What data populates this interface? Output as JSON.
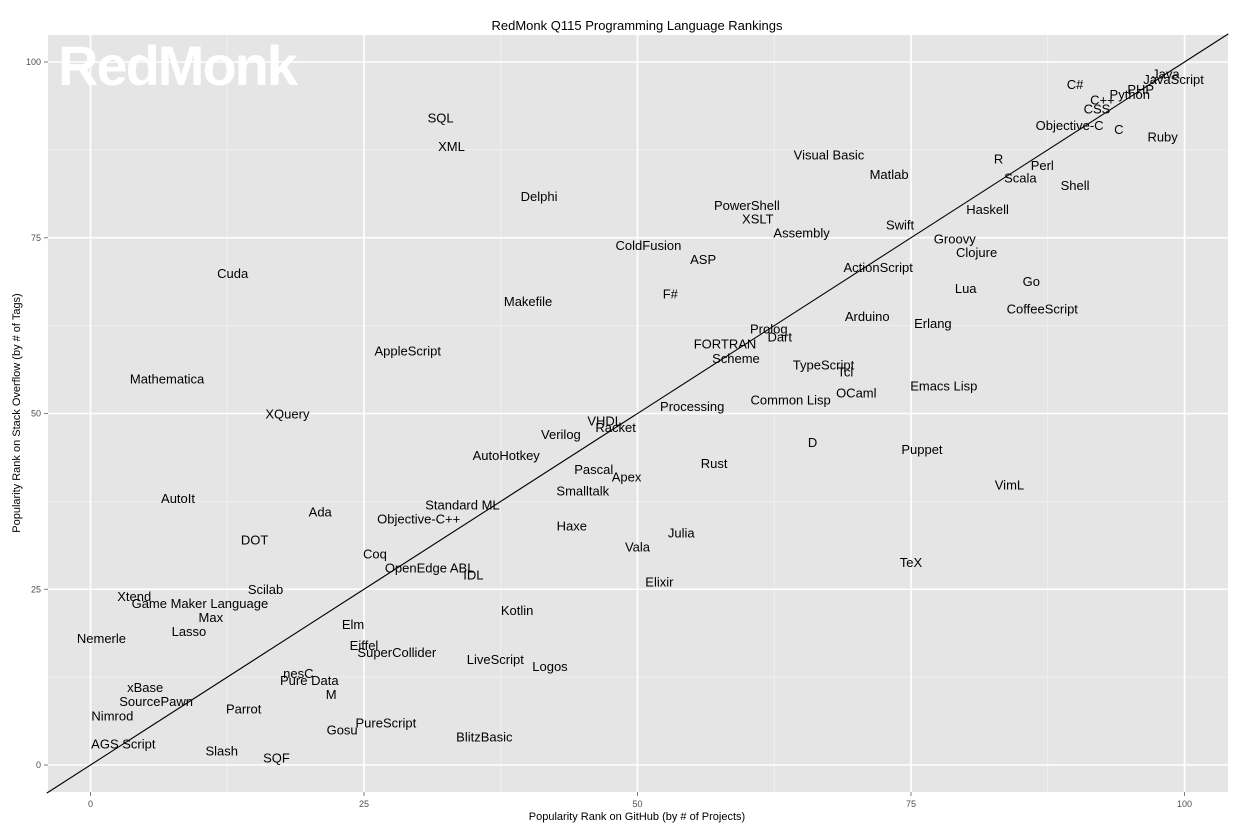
{
  "chart_data": {
    "type": "scatter",
    "title": "RedMonk Q115 Programming Language Rankings",
    "xlabel": "Popularity Rank on GitHub (by # of Projects)",
    "ylabel": "Popularity Rank on Stack Overflow (by # of Tags)",
    "xlim": [
      -4,
      104
    ],
    "ylim": [
      -4,
      104
    ],
    "xticks": [
      0,
      25,
      50,
      75,
      100
    ],
    "yticks": [
      0,
      25,
      50,
      75,
      100
    ],
    "grid": true,
    "legend": "none",
    "reference_line": "y = x",
    "watermark": "RedMonk",
    "colors": {
      "panel_background": "#e5e5e5",
      "grid_major": "#ffffff",
      "grid_minor": "#f2f2f2",
      "text": "#000000",
      "reference_line": "#000000",
      "watermark": "#ffffff"
    },
    "points": [
      {
        "label": "Java",
        "x": 98.3,
        "y": 98.3
      },
      {
        "label": "JavaScript",
        "x": 99.0,
        "y": 97.5
      },
      {
        "label": "C#",
        "x": 90.0,
        "y": 96.8
      },
      {
        "label": "PHP",
        "x": 96.0,
        "y": 96.1
      },
      {
        "label": "Python",
        "x": 95.0,
        "y": 95.4
      },
      {
        "label": "C++",
        "x": 92.5,
        "y": 94.6
      },
      {
        "label": "CSS",
        "x": 92.0,
        "y": 93.3
      },
      {
        "label": "Objective-C",
        "x": 89.5,
        "y": 91.0
      },
      {
        "label": "C",
        "x": 94.0,
        "y": 90.4
      },
      {
        "label": "Ruby",
        "x": 98.0,
        "y": 89.3
      },
      {
        "label": "R",
        "x": 83.0,
        "y": 86.2
      },
      {
        "label": "Perl",
        "x": 87.0,
        "y": 85.3
      },
      {
        "label": "Scala",
        "x": 85.0,
        "y": 83.5
      },
      {
        "label": "Shell",
        "x": 90.0,
        "y": 82.4
      },
      {
        "label": "Visual Basic",
        "x": 67.5,
        "y": 86.8
      },
      {
        "label": "Matlab",
        "x": 73.0,
        "y": 84.0
      },
      {
        "label": "Haskell",
        "x": 82.0,
        "y": 79.0
      },
      {
        "label": "Swift",
        "x": 74.0,
        "y": 76.8
      },
      {
        "label": "Groovy",
        "x": 79.0,
        "y": 74.8
      },
      {
        "label": "Clojure",
        "x": 81.0,
        "y": 72.9
      },
      {
        "label": "ActionScript",
        "x": 72.0,
        "y": 70.8
      },
      {
        "label": "Go",
        "x": 86.0,
        "y": 68.8
      },
      {
        "label": "Lua",
        "x": 80.0,
        "y": 67.8
      },
      {
        "label": "CoffeeScript",
        "x": 87.0,
        "y": 64.9
      },
      {
        "label": "Arduino",
        "x": 71.0,
        "y": 63.8
      },
      {
        "label": "Erlang",
        "x": 77.0,
        "y": 62.8
      },
      {
        "label": "PowerShell",
        "x": 60.0,
        "y": 79.6
      },
      {
        "label": "XSLT",
        "x": 61.0,
        "y": 77.7
      },
      {
        "label": "Assembly",
        "x": 65.0,
        "y": 75.7
      },
      {
        "label": "ColdFusion",
        "x": 51.0,
        "y": 73.9
      },
      {
        "label": "ASP",
        "x": 56.0,
        "y": 71.9
      },
      {
        "label": "F#",
        "x": 53.0,
        "y": 67.0
      },
      {
        "label": "Prolog",
        "x": 62.0,
        "y": 62.0
      },
      {
        "label": "Dart",
        "x": 63.0,
        "y": 60.9
      },
      {
        "label": "FORTRAN",
        "x": 58.0,
        "y": 59.9
      },
      {
        "label": "Scheme",
        "x": 59.0,
        "y": 57.8
      },
      {
        "label": "TypeScript",
        "x": 67.0,
        "y": 56.9
      },
      {
        "label": "Tcl",
        "x": 69.0,
        "y": 55.9
      },
      {
        "label": "Emacs Lisp",
        "x": 78.0,
        "y": 53.9
      },
      {
        "label": "OCaml",
        "x": 70.0,
        "y": 52.9
      },
      {
        "label": "Common Lisp",
        "x": 64.0,
        "y": 51.9
      },
      {
        "label": "Processing",
        "x": 55.0,
        "y": 51.0
      },
      {
        "label": "D",
        "x": 66.0,
        "y": 45.9
      },
      {
        "label": "Puppet",
        "x": 76.0,
        "y": 44.9
      },
      {
        "label": "VimL",
        "x": 84.0,
        "y": 39.8
      },
      {
        "label": "TeX",
        "x": 75.0,
        "y": 28.8
      },
      {
        "label": "SQL",
        "x": 32.0,
        "y": 92.0
      },
      {
        "label": "XML",
        "x": 33.0,
        "y": 88.0
      },
      {
        "label": "Delphi",
        "x": 41.0,
        "y": 80.9
      },
      {
        "label": "Cuda",
        "x": 13.0,
        "y": 69.9
      },
      {
        "label": "Makefile",
        "x": 40.0,
        "y": 65.9
      },
      {
        "label": "AppleScript",
        "x": 29.0,
        "y": 58.9
      },
      {
        "label": "Mathematica",
        "x": 7.0,
        "y": 54.9
      },
      {
        "label": "XQuery",
        "x": 18.0,
        "y": 49.9
      },
      {
        "label": "VHDL",
        "x": 47.0,
        "y": 48.9
      },
      {
        "label": "Racket",
        "x": 48.0,
        "y": 48.0
      },
      {
        "label": "Verilog",
        "x": 43.0,
        "y": 47.0
      },
      {
        "label": "AutoHotkey",
        "x": 38.0,
        "y": 44.0
      },
      {
        "label": "Pascal",
        "x": 46.0,
        "y": 42.0
      },
      {
        "label": "Apex",
        "x": 49.0,
        "y": 41.0
      },
      {
        "label": "Rust",
        "x": 57.0,
        "y": 42.9
      },
      {
        "label": "Smalltalk",
        "x": 45.0,
        "y": 39.0
      },
      {
        "label": "AutoIt",
        "x": 8.0,
        "y": 37.9
      },
      {
        "label": "Standard ML",
        "x": 34.0,
        "y": 37.0
      },
      {
        "label": "Ada",
        "x": 21.0,
        "y": 36.0
      },
      {
        "label": "Objective-C++",
        "x": 30.0,
        "y": 35.0
      },
      {
        "label": "Haxe",
        "x": 44.0,
        "y": 34.0
      },
      {
        "label": "Julia",
        "x": 54.0,
        "y": 33.0
      },
      {
        "label": "DOT",
        "x": 15.0,
        "y": 32.0
      },
      {
        "label": "Vala",
        "x": 50.0,
        "y": 31.0
      },
      {
        "label": "Coq",
        "x": 26.0,
        "y": 30.0
      },
      {
        "label": "OpenEdge ABL",
        "x": 31.0,
        "y": 28.0
      },
      {
        "label": "IDL",
        "x": 35.0,
        "y": 27.0
      },
      {
        "label": "Elixir",
        "x": 52.0,
        "y": 26.0
      },
      {
        "label": "Scilab",
        "x": 16.0,
        "y": 25.0
      },
      {
        "label": "Xtend",
        "x": 4.0,
        "y": 24.0
      },
      {
        "label": "Game Maker Language",
        "x": 10.0,
        "y": 23.0
      },
      {
        "label": "Kotlin",
        "x": 39.0,
        "y": 22.0
      },
      {
        "label": "Max",
        "x": 11.0,
        "y": 21.0
      },
      {
        "label": "Elm",
        "x": 24.0,
        "y": 20.0
      },
      {
        "label": "Lasso",
        "x": 9.0,
        "y": 19.0
      },
      {
        "label": "Nemerle",
        "x": 1.0,
        "y": 18.0
      },
      {
        "label": "Eiffel",
        "x": 25.0,
        "y": 17.0
      },
      {
        "label": "SuperCollider",
        "x": 28.0,
        "y": 16.0
      },
      {
        "label": "LiveScript",
        "x": 37.0,
        "y": 15.0
      },
      {
        "label": "Logos",
        "x": 42.0,
        "y": 14.0
      },
      {
        "label": "nesC",
        "x": 19.0,
        "y": 13.0
      },
      {
        "label": "Pure Data",
        "x": 20.0,
        "y": 12.0
      },
      {
        "label": "xBase",
        "x": 5.0,
        "y": 11.0
      },
      {
        "label": "M",
        "x": 22.0,
        "y": 10.0
      },
      {
        "label": "SourcePawn",
        "x": 6.0,
        "y": 9.0
      },
      {
        "label": "Parrot",
        "x": 14.0,
        "y": 8.0
      },
      {
        "label": "Nimrod",
        "x": 2.0,
        "y": 7.0
      },
      {
        "label": "PureScript",
        "x": 27.0,
        "y": 6.0
      },
      {
        "label": "Gosu",
        "x": 23.0,
        "y": 5.0
      },
      {
        "label": "BlitzBasic",
        "x": 36.0,
        "y": 4.0
      },
      {
        "label": "AGS Script",
        "x": 3.0,
        "y": 3.0
      },
      {
        "label": "Slash",
        "x": 12.0,
        "y": 2.0
      },
      {
        "label": "SQF",
        "x": 17.0,
        "y": 1.0
      }
    ]
  }
}
